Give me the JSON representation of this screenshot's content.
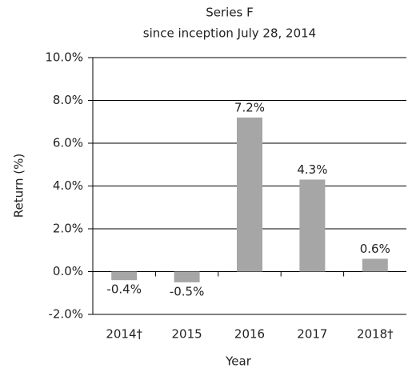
{
  "chart_data": {
    "type": "bar",
    "title": "Series F",
    "subtitle": "since inception July 28, 2014",
    "x_label": "Year",
    "y_label": "Return (%)",
    "categories": [
      "2014†",
      "2015",
      "2016",
      "2017",
      "2018†"
    ],
    "values": [
      -0.4,
      -0.5,
      7.2,
      4.3,
      0.6
    ],
    "value_labels": [
      "-0.4%",
      "-0.5%",
      "7.2%",
      "4.3%",
      "0.6%"
    ],
    "color": "#a6a6a6",
    "ylim": [
      -2,
      10
    ],
    "yticks": [
      {
        "value": -2,
        "label": "-2.0%"
      },
      {
        "value": 0,
        "label": "0.0%"
      },
      {
        "value": 2,
        "label": "2.0%"
      },
      {
        "value": 4,
        "label": "4.0%"
      },
      {
        "value": 6,
        "label": "6.0%"
      },
      {
        "value": 8,
        "label": "8.0%"
      },
      {
        "value": 10,
        "label": "10.0%"
      }
    ],
    "grid": true
  }
}
